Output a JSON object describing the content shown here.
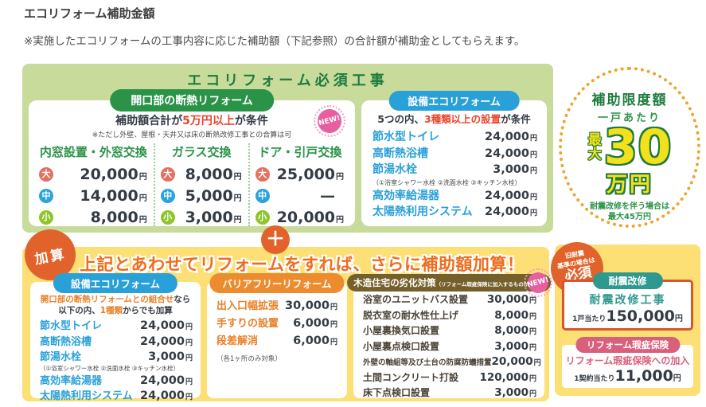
{
  "page": {
    "title": "エコリフォーム補助金額",
    "note": "※実施したエコリフォームの工事内容に応じた補助額（下記参照）の合計額が補助金としてもらえます。"
  },
  "required": {
    "title": "エコリフォーム必須工事",
    "insulation": {
      "pill": "開口部の断熱リフォーム",
      "new_badge": "NEW!",
      "condition": {
        "prefix": "補助額合計が",
        "highlight": "5万円以上",
        "suffix": "が条件"
      },
      "condition_note": "※ただし外壁、屋根・天井又は床の断熱改修工事との合算は可",
      "columns": [
        {
          "header": "内窓設置・外窓交換",
          "rows": [
            {
              "size": "大",
              "value": "20,000",
              "unit": "円"
            },
            {
              "size": "中",
              "value": "14,000",
              "unit": "円"
            },
            {
              "size": "小",
              "value": "8,000",
              "unit": "円"
            }
          ]
        },
        {
          "header": "ガラス交換",
          "rows": [
            {
              "size": "大",
              "value": "8,000",
              "unit": "円"
            },
            {
              "size": "中",
              "value": "5,000",
              "unit": "円"
            },
            {
              "size": "小",
              "value": "3,000",
              "unit": "円"
            }
          ]
        },
        {
          "header": "ドア・引戸交換",
          "rows": [
            {
              "size": "大",
              "value": "25,000",
              "unit": "円"
            },
            {
              "size": "中",
              "value": "—",
              "unit": ""
            },
            {
              "size": "小",
              "value": "20,000",
              "unit": "円"
            }
          ]
        }
      ]
    },
    "equipment": {
      "pill": "設備エコリフォーム",
      "condition": {
        "prefix": "5つの内、",
        "highlight": "3種類以上の設置",
        "suffix": "が条件"
      },
      "items": [
        {
          "name": "節水型トイレ",
          "value": "24,000",
          "unit": "円"
        },
        {
          "name": "高断熱浴槽",
          "value": "24,000",
          "unit": "円"
        },
        {
          "name": "節湯水栓",
          "value": "3,000",
          "unit": "円"
        }
      ],
      "faucet_note": "（①浴室シャワー水栓 ②洗面水栓 ③キッチン水栓）",
      "items2": [
        {
          "name": "高効率給湯器",
          "value": "24,000",
          "unit": "円"
        },
        {
          "name": "太陽熱利用システム",
          "value": "24,000",
          "unit": "円"
        }
      ]
    }
  },
  "limit": {
    "title": "補助限度額",
    "subtitle": "一戸あたり",
    "max_label": "最大",
    "amount": "30",
    "amount_unit": "万円",
    "note1": "耐震改修を伴う場合は",
    "note2": "最大45万円"
  },
  "addition": {
    "badge": "加算",
    "plus": "＋",
    "banner": "上記とあわせてリフォームをすれば、さらに補助額加算！",
    "equipment": {
      "pill": "設備エコリフォーム",
      "combo_line": {
        "highlight": "開口部の断熱リフォームとの組合せ",
        "suffix": "なら"
      },
      "count_line": {
        "prefix": "以下の内、",
        "highlight": "1種類",
        "suffix": "からでも加算"
      },
      "items": [
        {
          "name": "節水型トイレ",
          "value": "24,000",
          "unit": "円"
        },
        {
          "name": "高断熱浴槽",
          "value": "24,000",
          "unit": "円"
        },
        {
          "name": "節湯水栓",
          "value": "3,000",
          "unit": "円"
        }
      ],
      "faucet_note": "（①浴室シャワー水栓 ②洗面水栓 ③キッチン水栓）",
      "items2": [
        {
          "name": "高効率給湯器",
          "value": "24,000",
          "unit": "円"
        },
        {
          "name": "太陽熱利用システム",
          "value": "24,000",
          "unit": "円"
        }
      ]
    },
    "barrier_free": {
      "pill": "バリアフリーリフォーム",
      "items": [
        {
          "name": "出入口幅拡張",
          "value": "30,000",
          "unit": "円"
        },
        {
          "name": "手すりの設置",
          "value": "6,000",
          "unit": "円"
        },
        {
          "name": "段差解消",
          "value": "6,000",
          "unit": "円"
        }
      ],
      "note": "（各1ヶ所のみ対象）"
    },
    "wooden": {
      "pill": "木造住宅の劣化対策",
      "pill_note": "（リフォーム瑕疵保険に加入するものが対象）",
      "new_badge": "NEW!",
      "items": [
        {
          "name": "浴室のユニットバス設置",
          "value": "30,000",
          "unit": "円"
        },
        {
          "name": "脱衣室の耐水性仕上げ",
          "value": "8,000",
          "unit": "円"
        },
        {
          "name": "小屋裏換気口設置",
          "value": "8,000",
          "unit": "円"
        },
        {
          "name": "小屋裏点検口設置",
          "value": "3,000",
          "unit": "円"
        },
        {
          "name": "外壁の軸組等及び土台の防腐防蟻措置",
          "value": "20,000",
          "unit": "円"
        },
        {
          "name": "土間コンクリート打設",
          "value": "120,000",
          "unit": "円"
        },
        {
          "name": "床下点検口設置",
          "value": "3,000",
          "unit": "円"
        }
      ]
    }
  },
  "seismic": {
    "badge": {
      "line1": "旧耐震",
      "line2": "基準の場合は",
      "line3": "必須"
    },
    "pill": "耐震改修",
    "work": "耐震改修工事",
    "per": "1戸当たり",
    "value": "150,000",
    "unit": "円"
  },
  "insurance": {
    "pill": "リフォーム瑕疵保険",
    "work": "リフォーム瑕疵保険への加入",
    "per": "1契約当たり",
    "value": "11,000",
    "unit": "円"
  },
  "colors": {
    "green_dark": "#1c7c3e",
    "green_pill": "#2b9348",
    "green_bg": "#c9db9b",
    "blue": "#2aa0d8",
    "navy_text": "#333b44",
    "red_highlight": "#e8452c",
    "orange": "#e2622b",
    "orange_light": "#ec8c2e",
    "yellow_bg": "#fcdf75",
    "yellow_number": "#f3e11c",
    "pink_new": "#e85e9e",
    "teal": "#2e998f",
    "rose": "#d95f7d",
    "brown_pill": "#75602c",
    "dot_orange": "#efa32b",
    "badge_large": "#e4705f",
    "badge_medium": "#2ba3dc",
    "badge_small": "#8ec52b"
  }
}
